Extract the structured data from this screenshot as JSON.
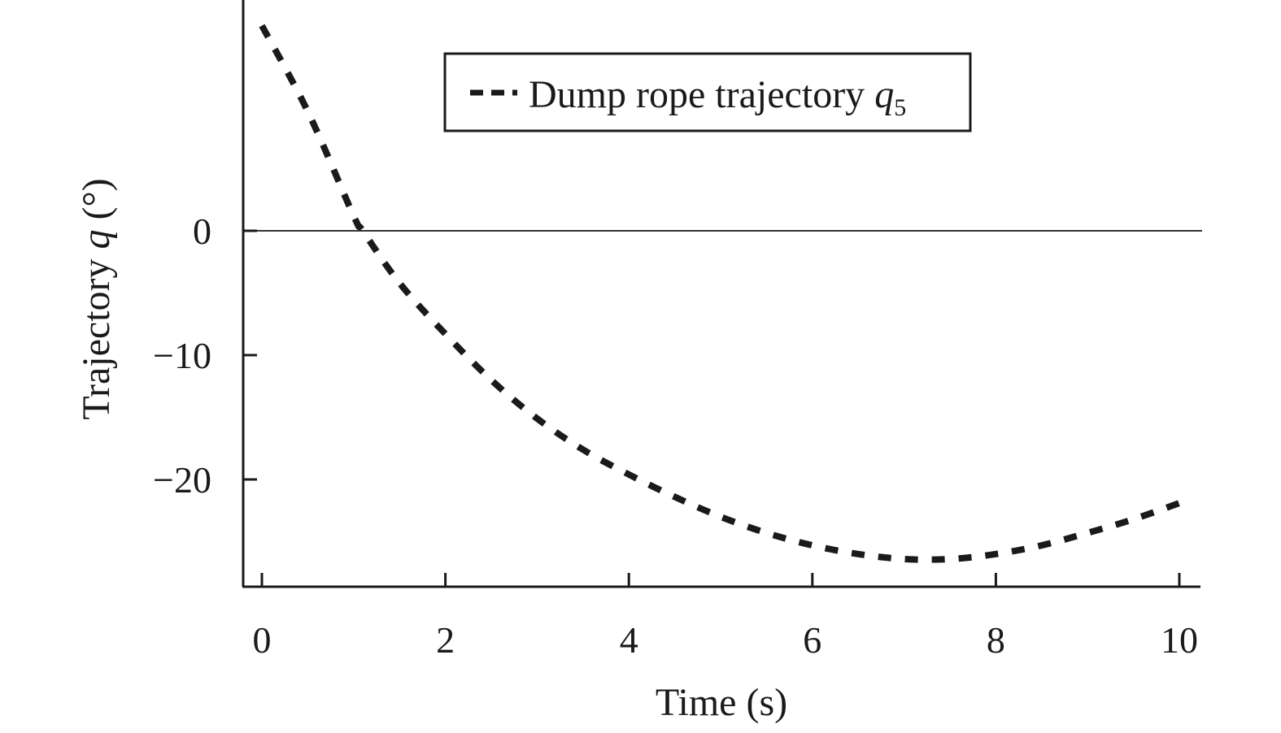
{
  "chart_data": {
    "type": "line",
    "title": "",
    "xlabel": "Time (s)",
    "ylabel": "Trajectory q (°)",
    "ylabel_parts": {
      "prefix": "Trajectory ",
      "var": "q",
      "suffix": " (°)"
    },
    "xlim": [
      -0.2,
      10.2
    ],
    "ylim": [
      -28.7,
      18.5
    ],
    "x_ticks": [
      0,
      2,
      4,
      6,
      8,
      10
    ],
    "x_tick_labels": [
      "0",
      "2",
      "4",
      "6",
      "8",
      "10"
    ],
    "y_ticks": [
      0,
      -10,
      -20
    ],
    "y_tick_labels": [
      "0",
      "−10",
      "−20"
    ],
    "grid": false,
    "reference_line": {
      "y": 0,
      "color": "#333333"
    },
    "legend": {
      "position": "upper center",
      "entries": [
        {
          "label": "Dump rope trajectory ",
          "var": "q",
          "sub": "5",
          "style": "dashed"
        }
      ]
    },
    "series": [
      {
        "name": "Dump rope trajectory q5",
        "style": "dashed",
        "color": "#1a1a1a",
        "x": [
          0,
          0.5,
          1.0,
          1.1,
          1.5,
          2.0,
          2.5,
          3.0,
          3.5,
          4.0,
          4.5,
          5.0,
          5.5,
          6.0,
          6.5,
          7.0,
          7.5,
          8.0,
          8.5,
          9.0,
          9.5,
          10.0
        ],
        "y": [
          16.5,
          9.6,
          1.2,
          0.0,
          -4.2,
          -8.3,
          -12.0,
          -15.1,
          -17.6,
          -19.6,
          -21.4,
          -23.0,
          -24.3,
          -25.3,
          -26.0,
          -26.4,
          -26.4,
          -26.0,
          -25.3,
          -24.3,
          -23.2,
          -21.9
        ]
      }
    ]
  }
}
